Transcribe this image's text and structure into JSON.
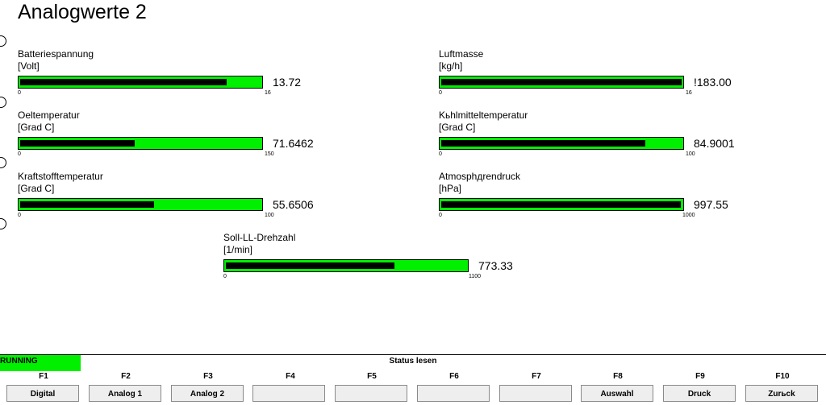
{
  "page": {
    "title": "Analogwerte 2"
  },
  "gauges": [
    {
      "label": "Batteriespannung",
      "unit": "[Volt]",
      "min": "0",
      "max": "16",
      "value": "13.72",
      "fraction": 0.8575
    },
    {
      "label": "Luftmasse",
      "unit": "[kg/h]",
      "min": "0",
      "max": "16",
      "value": "!183.00",
      "fraction": 1.0
    },
    {
      "label": "Oeltemperatur",
      "unit": "[Grad C]",
      "min": "0",
      "max": "150",
      "value": "71.6462",
      "fraction": 0.4776
    },
    {
      "label": "Kьhlmitteltemperatur",
      "unit": "[Grad C]",
      "min": "0",
      "max": "100",
      "value": "84.9001",
      "fraction": 0.849
    },
    {
      "label": "Kraftstofftemperatur",
      "unit": "[Grad C]",
      "min": "0",
      "max": "100",
      "value": "55.6506",
      "fraction": 0.5565
    },
    {
      "label": "Atmosphдrendruck",
      "unit": "[hPa]",
      "min": "0",
      "max": "1000",
      "value": "997.55",
      "fraction": 0.9976
    },
    {
      "label": "Soll-LL-Drehzahl",
      "unit": "[1/min]",
      "min": "0",
      "max": "1100",
      "value": "773.33",
      "fraction": 0.703
    }
  ],
  "status": {
    "running": "RUNNING",
    "title": "Status lesen"
  },
  "fkeys": [
    {
      "key": "F1",
      "label": "Digital"
    },
    {
      "key": "F2",
      "label": "Analog 1"
    },
    {
      "key": "F3",
      "label": "Analog 2"
    },
    {
      "key": "F4",
      "label": ""
    },
    {
      "key": "F5",
      "label": ""
    },
    {
      "key": "F6",
      "label": ""
    },
    {
      "key": "F7",
      "label": ""
    },
    {
      "key": "F8",
      "label": "Auswahl"
    },
    {
      "key": "F9",
      "label": "Druck"
    },
    {
      "key": "F10",
      "label": "Zurьck"
    }
  ]
}
